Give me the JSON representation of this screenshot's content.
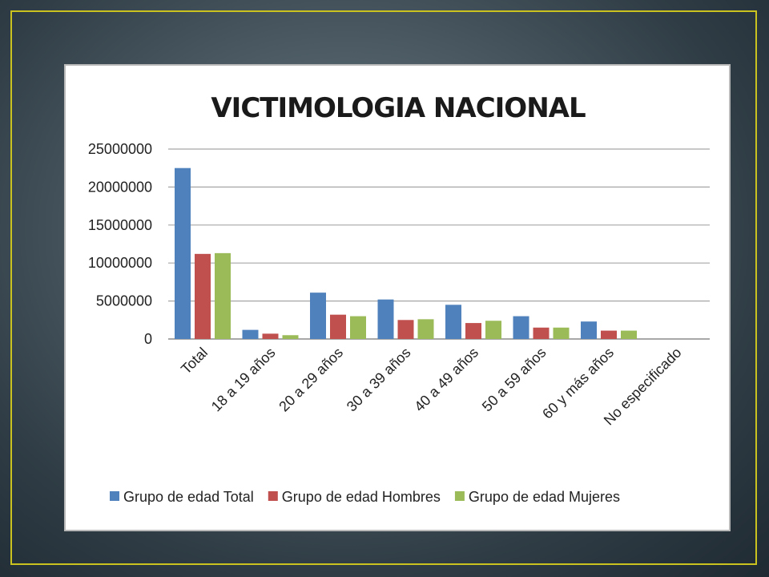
{
  "chart_data": {
    "type": "bar",
    "title": "VICTIMOLOGIA NACIONAL",
    "xlabel": "",
    "ylabel": "",
    "ylim": [
      0,
      25000000
    ],
    "yticks": [
      "0",
      "5000000",
      "10000000",
      "15000000",
      "20000000",
      "25000000"
    ],
    "grid": true,
    "legend_position": "bottom",
    "categories": [
      "Total",
      "18 a 19 años",
      "20 a 29 años",
      "30 a 39 años",
      "40 a 49 años",
      "50 a 59 años",
      "60 y más años",
      "No especificado"
    ],
    "series": [
      {
        "name": "Grupo de edad Total",
        "color": "#4f81bd",
        "values": [
          22500000,
          1200000,
          6100000,
          5200000,
          4500000,
          3000000,
          2300000,
          0
        ]
      },
      {
        "name": "Grupo de edad Hombres",
        "color": "#c0504d",
        "values": [
          11200000,
          700000,
          3200000,
          2500000,
          2100000,
          1500000,
          1100000,
          0
        ]
      },
      {
        "name": "Grupo de edad Mujeres",
        "color": "#9bbb59",
        "values": [
          11300000,
          500000,
          3000000,
          2600000,
          2400000,
          1500000,
          1100000,
          0
        ]
      }
    ]
  }
}
